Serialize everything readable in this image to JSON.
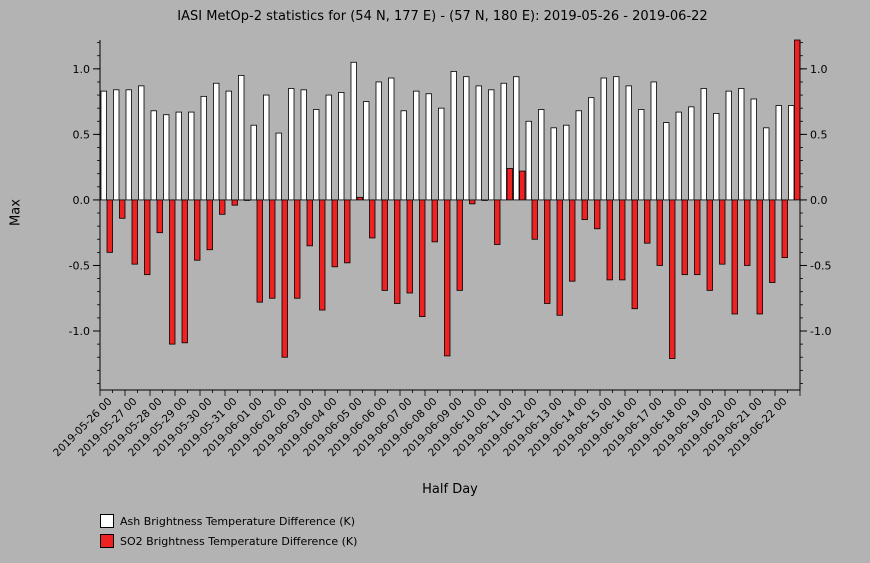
{
  "title": "IASI MetOp-2 statistics for (54 N, 177 E) - (57 N, 180 E): 2019-05-26 - 2019-06-22",
  "colors": {
    "background": "#b3b3b3",
    "ash": "#ffffff",
    "so2": "#ee2222",
    "axis": "#000000"
  },
  "chart_data": {
    "type": "bar",
    "title": "IASI MetOp-2 statistics for (54 N, 177 E) - (57 N, 180 E): 2019-05-26 - 2019-06-22",
    "xlabel": "Half Day",
    "ylabel": "Max",
    "ylim": [
      -1.45,
      1.22
    ],
    "yticks": [
      1.0,
      0.5,
      0.0,
      -0.5,
      -1.0
    ],
    "ytick_labels": [
      "1.0",
      "0.5",
      "0.0",
      "-0.5",
      "-1.0"
    ],
    "grid": false,
    "legend_position": "bottom-left",
    "x_tick_labels": [
      "2019-05-26 00",
      "2019-05-27 00",
      "2019-05-28 00",
      "2019-05-29 00",
      "2019-05-30 00",
      "2019-05-31 00",
      "2019-06-01 00",
      "2019-06-02 00",
      "2019-06-03 00",
      "2019-06-04 00",
      "2019-06-05 00",
      "2019-06-06 00",
      "2019-06-07 00",
      "2019-06-08 00",
      "2019-06-09 00",
      "2019-06-10 00",
      "2019-06-11 00",
      "2019-06-12 00",
      "2019-06-13 00",
      "2019-06-14 00",
      "2019-06-15 00",
      "2019-06-16 00",
      "2019-06-17 00",
      "2019-06-18 00",
      "2019-06-19 00",
      "2019-06-20 00",
      "2019-06-21 00",
      "2019-06-22 00"
    ],
    "series": [
      {
        "name": "Ash Brightness Temperature Difference (K)",
        "values": [
          0.83,
          0.84,
          0.84,
          0.87,
          0.68,
          0.65,
          0.67,
          0.67,
          0.79,
          0.89,
          0.83,
          0.95,
          0.57,
          0.8,
          0.51,
          0.85,
          0.84,
          0.69,
          0.8,
          0.82,
          1.05,
          0.75,
          0.9,
          0.93,
          0.68,
          0.83,
          0.81,
          0.7,
          0.98,
          0.94,
          0.87,
          0.84,
          0.89,
          0.94,
          0.6,
          0.69,
          0.55,
          0.57,
          0.68,
          0.78,
          0.93,
          0.94,
          0.87,
          0.69,
          0.9,
          0.59,
          0.67,
          0.71,
          0.85,
          0.66,
          0.83,
          0.85,
          0.77,
          0.55,
          0.72,
          0.72
        ]
      },
      {
        "name": "SO2 Brightness Temperature Difference (K)",
        "values": [
          -0.4,
          -0.14,
          -0.49,
          -0.57,
          -0.25,
          -1.1,
          -1.09,
          -0.46,
          -0.38,
          -0.11,
          -0.04,
          0.0,
          -0.78,
          -0.75,
          -1.2,
          -0.75,
          -0.35,
          -0.84,
          -0.51,
          -0.48,
          0.02,
          -0.29,
          -0.69,
          -0.79,
          -0.71,
          -0.89,
          -0.32,
          -1.19,
          -0.69,
          -0.03,
          0.0,
          -0.34,
          0.24,
          0.22,
          -0.3,
          -0.79,
          -0.88,
          -0.62,
          -0.15,
          -0.22,
          -0.61,
          -0.61,
          -0.83,
          -0.33,
          -0.5,
          -1.21,
          -0.57,
          -0.57,
          -0.69,
          -0.49,
          -0.87,
          -0.5,
          -0.87,
          -0.63,
          -0.44,
          1.23
        ]
      }
    ]
  }
}
